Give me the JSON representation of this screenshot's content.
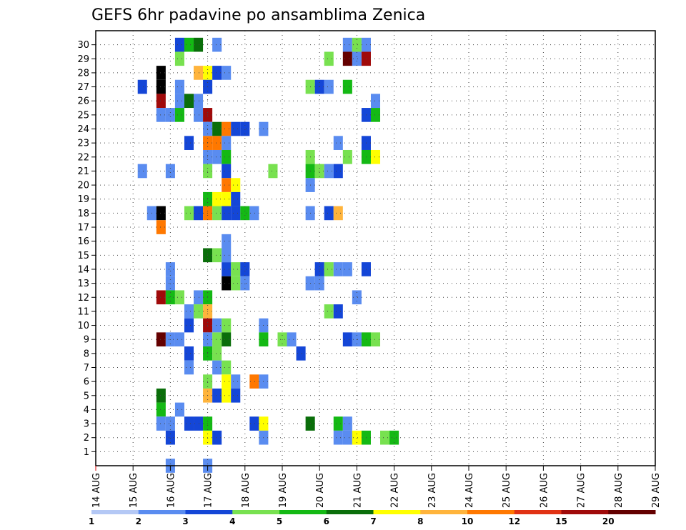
{
  "chart_data": {
    "type": "heatmap",
    "title": "GEFS 6hr padavine po ansamblima Zenica",
    "xlabel": "",
    "ylabel": "",
    "x_ticks": [
      "14 AUG",
      "15 AUG",
      "16 AUG",
      "17 AUG",
      "18 AUG",
      "19 AUG",
      "20 AUG",
      "21 AUG",
      "22 AUG",
      "23 AUG",
      "24 AUG",
      "25 AUG",
      "26 AUG",
      "27 AUG",
      "28 AUG",
      "29 AUG"
    ],
    "x_range": [
      0,
      60
    ],
    "x_units": "6-hour steps from 14 AUG 00Z",
    "y_ticks": [
      "1",
      "2",
      "3",
      "4",
      "5",
      "6",
      "7",
      "8",
      "9",
      "10",
      "11",
      "12",
      "13",
      "14",
      "15",
      "16",
      "17",
      "18",
      "19",
      "20",
      "21",
      "22",
      "23",
      "24",
      "25",
      "26",
      "27",
      "28",
      "29",
      "30"
    ],
    "y_range": [
      0,
      31
    ],
    "grid": true,
    "colorbar": {
      "levels": [
        "1",
        "2",
        "3",
        "4",
        "5",
        "6",
        "7",
        "8",
        "10",
        "12",
        "15",
        "20"
      ],
      "colors": [
        "#b4c8f5",
        "#5a8cf0",
        "#1446d7",
        "#78e150",
        "#14b914",
        "#0a6e0a",
        "#ffff00",
        "#ffb43c",
        "#ff7800",
        "#e13214",
        "#a00a0a",
        "#640000"
      ]
    },
    "cells": [
      [
        9,
        30,
        2
      ],
      [
        10,
        30,
        4
      ],
      [
        11,
        30,
        5
      ],
      [
        13,
        30,
        1
      ],
      [
        27,
        30,
        1
      ],
      [
        28,
        30,
        3
      ],
      [
        29,
        30,
        1
      ],
      [
        9,
        29,
        3
      ],
      [
        25,
        29,
        3
      ],
      [
        27,
        29,
        11
      ],
      [
        28,
        29,
        1
      ],
      [
        29,
        29,
        10
      ],
      [
        7,
        28,
        12
      ],
      [
        11,
        28,
        7
      ],
      [
        12,
        28,
        6
      ],
      [
        13,
        28,
        2
      ],
      [
        14,
        28,
        1
      ],
      [
        5,
        27,
        2
      ],
      [
        7,
        27,
        12
      ],
      [
        9,
        27,
        1
      ],
      [
        12,
        27,
        2
      ],
      [
        23,
        27,
        3
      ],
      [
        24,
        27,
        2
      ],
      [
        25,
        27,
        1
      ],
      [
        27,
        27,
        4
      ],
      [
        7,
        26,
        10
      ],
      [
        9,
        26,
        1
      ],
      [
        10,
        26,
        5
      ],
      [
        11,
        26,
        1
      ],
      [
        30,
        26,
        1
      ],
      [
        7,
        25,
        1
      ],
      [
        8,
        25,
        1
      ],
      [
        9,
        25,
        4
      ],
      [
        11,
        25,
        1
      ],
      [
        12,
        25,
        10
      ],
      [
        29,
        25,
        2
      ],
      [
        30,
        25,
        4
      ],
      [
        12,
        24,
        1
      ],
      [
        13,
        24,
        5
      ],
      [
        14,
        24,
        8
      ],
      [
        15,
        24,
        2
      ],
      [
        16,
        24,
        2
      ],
      [
        18,
        24,
        1
      ],
      [
        10,
        23,
        2
      ],
      [
        12,
        23,
        8
      ],
      [
        13,
        23,
        8
      ],
      [
        14,
        23,
        1
      ],
      [
        26,
        23,
        1
      ],
      [
        29,
        23,
        2
      ],
      [
        12,
        22,
        1
      ],
      [
        13,
        22,
        1
      ],
      [
        14,
        22,
        4
      ],
      [
        23,
        22,
        3
      ],
      [
        27,
        22,
        3
      ],
      [
        29,
        22,
        4
      ],
      [
        30,
        22,
        6
      ],
      [
        5,
        21,
        1
      ],
      [
        8,
        21,
        1
      ],
      [
        12,
        21,
        3
      ],
      [
        14,
        21,
        2
      ],
      [
        19,
        21,
        3
      ],
      [
        23,
        21,
        4
      ],
      [
        24,
        21,
        3
      ],
      [
        25,
        21,
        1
      ],
      [
        26,
        21,
        2
      ],
      [
        14,
        20,
        8
      ],
      [
        15,
        20,
        6
      ],
      [
        23,
        20,
        1
      ],
      [
        12,
        19,
        4
      ],
      [
        13,
        19,
        6
      ],
      [
        14,
        19,
        6
      ],
      [
        15,
        19,
        2
      ],
      [
        6,
        18,
        1
      ],
      [
        7,
        18,
        12
      ],
      [
        10,
        18,
        3
      ],
      [
        11,
        18,
        2
      ],
      [
        12,
        18,
        8
      ],
      [
        13,
        18,
        3
      ],
      [
        14,
        18,
        2
      ],
      [
        15,
        18,
        2
      ],
      [
        16,
        18,
        4
      ],
      [
        17,
        18,
        1
      ],
      [
        23,
        18,
        1
      ],
      [
        25,
        18,
        2
      ],
      [
        26,
        18,
        7
      ],
      [
        7,
        17,
        8
      ],
      [
        14,
        16,
        1
      ],
      [
        12,
        15,
        5
      ],
      [
        13,
        15,
        3
      ],
      [
        14,
        15,
        1
      ],
      [
        8,
        14,
        1
      ],
      [
        14,
        14,
        2
      ],
      [
        15,
        14,
        3
      ],
      [
        16,
        14,
        2
      ],
      [
        24,
        14,
        2
      ],
      [
        25,
        14,
        3
      ],
      [
        26,
        14,
        1
      ],
      [
        27,
        14,
        1
      ],
      [
        29,
        14,
        2
      ],
      [
        8,
        13,
        1
      ],
      [
        14,
        13,
        12
      ],
      [
        15,
        13,
        3
      ],
      [
        16,
        13,
        1
      ],
      [
        23,
        13,
        1
      ],
      [
        24,
        13,
        1
      ],
      [
        7,
        12,
        10
      ],
      [
        8,
        12,
        4
      ],
      [
        9,
        12,
        3
      ],
      [
        11,
        12,
        1
      ],
      [
        12,
        12,
        4
      ],
      [
        28,
        12,
        1
      ],
      [
        10,
        11,
        1
      ],
      [
        11,
        11,
        3
      ],
      [
        12,
        11,
        7
      ],
      [
        25,
        11,
        3
      ],
      [
        26,
        11,
        2
      ],
      [
        10,
        10,
        2
      ],
      [
        12,
        10,
        10
      ],
      [
        13,
        10,
        1
      ],
      [
        14,
        10,
        3
      ],
      [
        18,
        10,
        1
      ],
      [
        7,
        9,
        11
      ],
      [
        8,
        9,
        1
      ],
      [
        9,
        9,
        1
      ],
      [
        12,
        9,
        1
      ],
      [
        13,
        9,
        3
      ],
      [
        14,
        9,
        5
      ],
      [
        18,
        9,
        4
      ],
      [
        20,
        9,
        3
      ],
      [
        21,
        9,
        1
      ],
      [
        27,
        9,
        2
      ],
      [
        28,
        9,
        1
      ],
      [
        29,
        9,
        4
      ],
      [
        30,
        9,
        3
      ],
      [
        10,
        8,
        2
      ],
      [
        12,
        8,
        4
      ],
      [
        13,
        8,
        3
      ],
      [
        22,
        8,
        2
      ],
      [
        10,
        7,
        1
      ],
      [
        13,
        7,
        1
      ],
      [
        14,
        7,
        3
      ],
      [
        12,
        6,
        3
      ],
      [
        14,
        6,
        6
      ],
      [
        15,
        6,
        1
      ],
      [
        17,
        6,
        8
      ],
      [
        18,
        6,
        1
      ],
      [
        7,
        5,
        5
      ],
      [
        12,
        5,
        7
      ],
      [
        13,
        5,
        2
      ],
      [
        14,
        5,
        6
      ],
      [
        15,
        5,
        2
      ],
      [
        7,
        4,
        4
      ],
      [
        9,
        4,
        1
      ],
      [
        7,
        3,
        1
      ],
      [
        8,
        3,
        1
      ],
      [
        10,
        3,
        2
      ],
      [
        11,
        3,
        2
      ],
      [
        12,
        3,
        4
      ],
      [
        17,
        3,
        2
      ],
      [
        18,
        3,
        6
      ],
      [
        23,
        3,
        5
      ],
      [
        26,
        3,
        4
      ],
      [
        27,
        3,
        1
      ],
      [
        8,
        2,
        2
      ],
      [
        12,
        2,
        6
      ],
      [
        13,
        2,
        2
      ],
      [
        18,
        2,
        1
      ],
      [
        26,
        2,
        1
      ],
      [
        27,
        2,
        1
      ],
      [
        28,
        2,
        6
      ],
      [
        29,
        2,
        4
      ],
      [
        31,
        2,
        3
      ],
      [
        32,
        2,
        4
      ],
      [
        8,
        0,
        1
      ],
      [
        12,
        0,
        1
      ]
    ]
  }
}
